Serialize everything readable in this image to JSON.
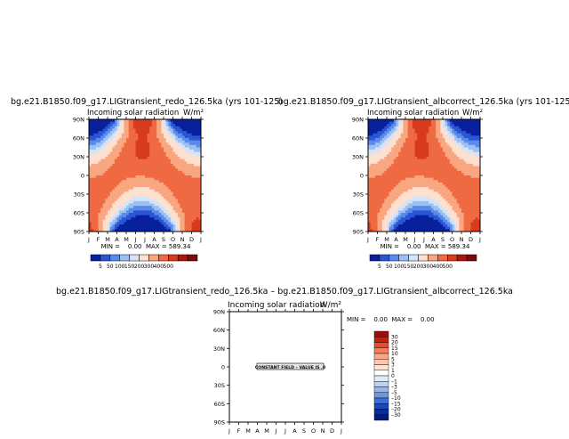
{
  "chart_data": [
    {
      "type": "heatmap",
      "title": "bg.e21.B1850.f09_g17.LIGtransient_redo_126.5ka (yrs 101-125)",
      "subtitle": "Incoming solar radiation",
      "units": "W/m²",
      "x_ticks": [
        "J",
        "F",
        "M",
        "A",
        "M",
        "J",
        "J",
        "A",
        "S",
        "O",
        "N",
        "D",
        "J"
      ],
      "y_ticks": [
        "90N",
        "60N",
        "30N",
        "0",
        "30S",
        "60S",
        "90S"
      ],
      "stats": "MIN =    0.00  MAX = 589.34",
      "colorbar_labels": [
        "5",
        "50",
        "100",
        "150",
        "200",
        "300",
        "400",
        "500"
      ],
      "colorbar_colors": [
        "#08209c",
        "#2a56d6",
        "#5a8be8",
        "#9dc0f2",
        "#d4e4f8",
        "#fde0cf",
        "#f9a780",
        "#ef6a42",
        "#d83a1e",
        "#a81810",
        "#780c0a"
      ],
      "min": 0.0,
      "max": 589.34
    },
    {
      "type": "heatmap",
      "title": "bg.e21.B1850.f09_g17.LIGtransient_albcorrect_126.5ka (yrs 101-125)",
      "subtitle": "Incoming solar radiation",
      "units": "W/m²",
      "x_ticks": [
        "J",
        "F",
        "M",
        "A",
        "M",
        "J",
        "J",
        "A",
        "S",
        "O",
        "N",
        "D",
        "J"
      ],
      "y_ticks": [
        "90N",
        "60N",
        "30N",
        "0",
        "30S",
        "60S",
        "90S"
      ],
      "stats": "MIN =    0.00  MAX = 589.34",
      "colorbar_labels": [
        "5",
        "50",
        "100",
        "150",
        "200",
        "300",
        "400",
        "500"
      ],
      "colorbar_colors": [
        "#08209c",
        "#2a56d6",
        "#5a8be8",
        "#9dc0f2",
        "#d4e4f8",
        "#fde0cf",
        "#f9a780",
        "#ef6a42",
        "#d83a1e",
        "#a81810",
        "#780c0a"
      ],
      "min": 0.0,
      "max": 589.34
    },
    {
      "type": "heatmap",
      "title": "bg.e21.B1850.f09_g17.LIGtransient_redo_126.5ka – bg.e21.B1850.f09_g17.LIGtransient_albcorrect_126.5ka",
      "subtitle": "Incoming solar radiation",
      "units": "W/m²",
      "x_ticks": [
        "J",
        "F",
        "M",
        "A",
        "M",
        "J",
        "J",
        "A",
        "S",
        "O",
        "N",
        "D",
        "J"
      ],
      "y_ticks": [
        "90N",
        "60N",
        "30N",
        "0",
        "30S",
        "60S",
        "90S"
      ],
      "stats": "MIN =    0.00  MAX =    0.00",
      "annotation": "CONSTANT FIELD – VALUE IS .0",
      "colorbar_labels": [
        "30",
        "20",
        "15",
        "10",
        "5",
        "3",
        "1",
        "0",
        "–1",
        "–3",
        "–5",
        "–10",
        "–15",
        "–20",
        "–30"
      ],
      "colorbar_colors": [
        "#9c0d0a",
        "#c8200f",
        "#e84a2a",
        "#f47d5a",
        "#f9a688",
        "#fcc8b2",
        "#fde2d6",
        "#ffffff",
        "#dfe9f8",
        "#bcd2f2",
        "#98b8ec",
        "#6d96e0",
        "#3f6fd2",
        "#1c47b8",
        "#0a2a98",
        "#061b78"
      ],
      "min": 0.0,
      "max": 0.0
    }
  ]
}
